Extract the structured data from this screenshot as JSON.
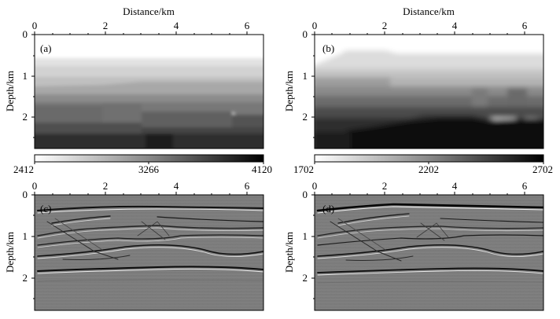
{
  "x_axis": {
    "label": "Distance/km",
    "ticks": [
      "0",
      "2",
      "4",
      "6"
    ]
  },
  "y_axis": {
    "label": "Depth/km",
    "ticks": [
      "0",
      "1",
      "2"
    ]
  },
  "panels": [
    {
      "id": "a",
      "tag": "(a)",
      "kind": "velocity",
      "colorbar": {
        "labels": [
          "2412",
          "3266",
          "4120"
        ]
      }
    },
    {
      "id": "b",
      "tag": "(b)",
      "kind": "velocity",
      "colorbar": {
        "labels": [
          "1702",
          "2202",
          "2702"
        ]
      }
    },
    {
      "id": "c",
      "tag": "(c)",
      "kind": "seismic-image"
    },
    {
      "id": "d",
      "tag": "(d)",
      "kind": "seismic-image"
    }
  ]
}
